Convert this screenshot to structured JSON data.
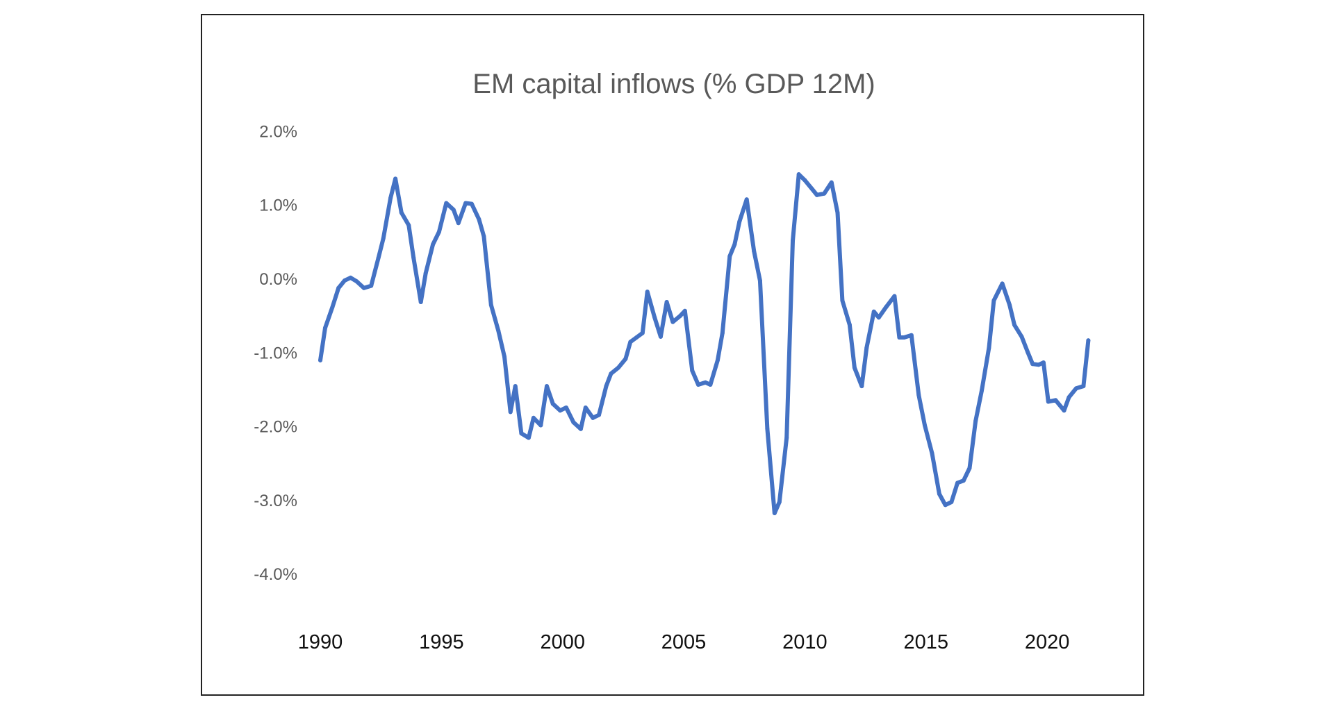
{
  "chart_data": {
    "type": "line",
    "title": "EM capital inflows (% GDP 12M)",
    "xlabel": "",
    "ylabel": "",
    "ylim": [
      -4.0,
      2.0
    ],
    "xlim": [
      1990,
      2022
    ],
    "grid": false,
    "legend": "none",
    "y_ticks": [
      "2.0%",
      "1.0%",
      "0.0%",
      "-1.0%",
      "-2.0%",
      "-3.0%",
      "-4.0%"
    ],
    "y_tick_values": [
      2,
      1,
      0,
      -1,
      -2,
      -3,
      -4
    ],
    "x_ticks": [
      "1990",
      "1995",
      "2000",
      "2005",
      "2010",
      "2015",
      "2020"
    ],
    "x_tick_values": [
      1990,
      1995,
      2000,
      2005,
      2010,
      2015,
      2020
    ],
    "line_color": "#4472C4",
    "series": [
      {
        "x": [
          1990.0,
          1990.2,
          1990.5,
          1990.75,
          1991.0,
          1991.25,
          1991.5,
          1991.8,
          1992.1,
          1992.4,
          1992.6,
          1992.9,
          1993.1,
          1993.35,
          1993.65,
          1993.85,
          1994.15,
          1994.35,
          1994.65,
          1994.9,
          1995.2,
          1995.5,
          1995.7,
          1996.0,
          1996.25,
          1996.55,
          1996.75,
          1997.05,
          1997.35,
          1997.6,
          1997.85,
          1998.05,
          1998.3,
          1998.6,
          1998.8,
          1999.1,
          1999.35,
          1999.6,
          1999.9,
          2000.15,
          2000.45,
          2000.75,
          2000.95,
          2001.25,
          2001.5,
          2001.8,
          2002.0,
          2002.3,
          2002.6,
          2002.8,
          2003.05,
          2003.3,
          2003.5,
          2003.8,
          2004.05,
          2004.3,
          2004.55,
          2004.85,
          2005.05,
          2005.35,
          2005.6,
          2005.9,
          2006.1,
          2006.4,
          2006.6,
          2006.9,
          2007.1,
          2007.3,
          2007.6,
          2007.9,
          2008.15,
          2008.45,
          2008.75,
          2008.95,
          2009.25,
          2009.5,
          2009.75,
          2010.0,
          2010.3,
          2010.5,
          2010.8,
          2011.1,
          2011.35,
          2011.55,
          2011.85,
          2012.05,
          2012.35,
          2012.55,
          2012.85,
          2013.05,
          2013.35,
          2013.7,
          2013.9,
          2014.1,
          2014.4,
          2014.7,
          2014.95,
          2015.25,
          2015.55,
          2015.8,
          2016.05,
          2016.3,
          2016.55,
          2016.8,
          2017.05,
          2017.3,
          2017.6,
          2017.8,
          2018.15,
          2018.45,
          2018.65,
          2018.95,
          2019.2,
          2019.4,
          2019.65,
          2019.85,
          2020.05,
          2020.35,
          2020.7,
          2020.9,
          2021.2,
          2021.5,
          2021.7
        ],
        "values": [
          -1.1,
          -0.66,
          -0.38,
          -0.12,
          -0.02,
          0.02,
          -0.03,
          -0.12,
          -0.09,
          0.29,
          0.55,
          1.1,
          1.36,
          0.9,
          0.73,
          0.29,
          -0.31,
          0.08,
          0.47,
          0.64,
          1.03,
          0.94,
          0.76,
          1.03,
          1.02,
          0.81,
          0.58,
          -0.35,
          -0.7,
          -1.05,
          -1.8,
          -1.45,
          -2.09,
          -2.15,
          -1.88,
          -1.98,
          -1.45,
          -1.69,
          -1.78,
          -1.74,
          -1.94,
          -2.03,
          -1.74,
          -1.88,
          -1.84,
          -1.45,
          -1.28,
          -1.2,
          -1.08,
          -0.85,
          -0.79,
          -0.73,
          -0.17,
          -0.52,
          -0.78,
          -0.31,
          -0.58,
          -0.5,
          -0.43,
          -1.24,
          -1.43,
          -1.4,
          -1.43,
          -1.1,
          -0.73,
          0.31,
          0.47,
          0.78,
          1.08,
          0.38,
          -0.02,
          -2.03,
          -3.17,
          -3.02,
          -2.15,
          0.52,
          1.42,
          1.34,
          1.22,
          1.14,
          1.16,
          1.31,
          0.9,
          -0.29,
          -0.62,
          -1.2,
          -1.45,
          -0.93,
          -0.44,
          -0.52,
          -0.38,
          -0.23,
          -0.79,
          -0.79,
          -0.76,
          -1.57,
          -1.98,
          -2.36,
          -2.91,
          -3.06,
          -3.02,
          -2.76,
          -2.73,
          -2.56,
          -1.92,
          -1.51,
          -0.93,
          -0.29,
          -0.06,
          -0.35,
          -0.62,
          -0.78,
          -0.99,
          -1.15,
          -1.16,
          -1.13,
          -1.66,
          -1.64,
          -1.78,
          -1.6,
          -1.48,
          -1.45,
          -0.83
        ]
      }
    ]
  }
}
